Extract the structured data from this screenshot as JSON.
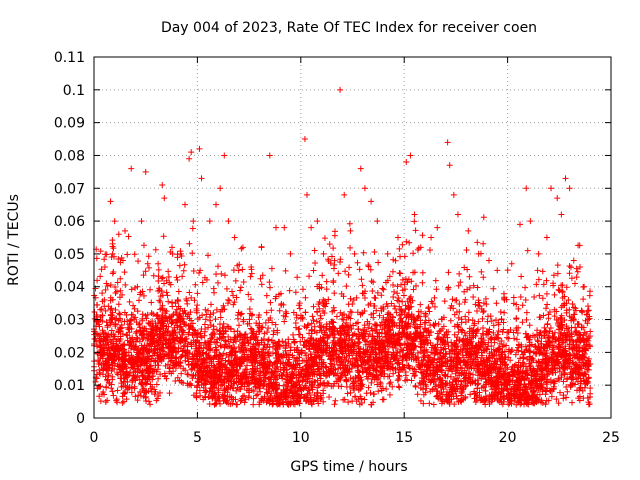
{
  "chart_data": {
    "type": "scatter",
    "title": "Day 004 of 2023, Rate Of TEC Index for receiver coen",
    "xlabel": "GPS time / hours",
    "ylabel": "ROTI / TECUs",
    "xlim": [
      0,
      25
    ],
    "ylim": [
      0,
      0.11
    ],
    "x_ticks": [
      "0",
      "5",
      "10",
      "15",
      "20",
      "25"
    ],
    "y_ticks": [
      "0",
      "0.01",
      "0.02",
      "0.03",
      "0.04",
      "0.05",
      "0.06",
      "0.07",
      "0.08",
      "0.09",
      "0.1",
      "0.11"
    ],
    "grid": true,
    "marker": "+",
    "color": "#ff0000",
    "points": [
      [
        0.1,
        0.028
      ],
      [
        0.3,
        0.033
      ],
      [
        0.5,
        0.036
      ],
      [
        0.6,
        0.041
      ],
      [
        0.8,
        0.066
      ],
      [
        0.9,
        0.05
      ],
      [
        1.0,
        0.06
      ],
      [
        1.2,
        0.056
      ],
      [
        1.4,
        0.048
      ],
      [
        1.5,
        0.057
      ],
      [
        1.8,
        0.076
      ],
      [
        2.1,
        0.04
      ],
      [
        2.3,
        0.06
      ],
      [
        2.5,
        0.075
      ],
      [
        2.6,
        0.047
      ],
      [
        3.1,
        0.047
      ],
      [
        3.3,
        0.071
      ],
      [
        3.4,
        0.067
      ],
      [
        3.8,
        0.05
      ],
      [
        4.2,
        0.05
      ],
      [
        4.4,
        0.065
      ],
      [
        4.6,
        0.079
      ],
      [
        4.7,
        0.081
      ],
      [
        4.8,
        0.06
      ],
      [
        5.1,
        0.082
      ],
      [
        5.2,
        0.073
      ],
      [
        5.6,
        0.06
      ],
      [
        5.9,
        0.065
      ],
      [
        6.1,
        0.07
      ],
      [
        6.3,
        0.08
      ],
      [
        6.5,
        0.06
      ],
      [
        6.8,
        0.055
      ],
      [
        7.2,
        0.052
      ],
      [
        7.6,
        0.046
      ],
      [
        8.1,
        0.052
      ],
      [
        8.5,
        0.08
      ],
      [
        8.8,
        0.058
      ],
      [
        9.2,
        0.058
      ],
      [
        9.5,
        0.05
      ],
      [
        10.2,
        0.085
      ],
      [
        10.3,
        0.068
      ],
      [
        10.5,
        0.058
      ],
      [
        10.8,
        0.06
      ],
      [
        11.1,
        0.05
      ],
      [
        11.4,
        0.053
      ],
      [
        11.9,
        0.1
      ],
      [
        12.1,
        0.068
      ],
      [
        12.4,
        0.057
      ],
      [
        12.6,
        0.05
      ],
      [
        12.9,
        0.076
      ],
      [
        13.1,
        0.07
      ],
      [
        13.4,
        0.066
      ],
      [
        13.7,
        0.06
      ],
      [
        14.2,
        0.05
      ],
      [
        14.7,
        0.055
      ],
      [
        15.1,
        0.078
      ],
      [
        15.3,
        0.08
      ],
      [
        15.5,
        0.062
      ],
      [
        15.8,
        0.052
      ],
      [
        16.3,
        0.055
      ],
      [
        16.6,
        0.058
      ],
      [
        17.1,
        0.084
      ],
      [
        17.2,
        0.077
      ],
      [
        17.4,
        0.068
      ],
      [
        17.6,
        0.062
      ],
      [
        18.1,
        0.057
      ],
      [
        18.6,
        0.05
      ],
      [
        19.1,
        0.048
      ],
      [
        19.5,
        0.045
      ],
      [
        20.2,
        0.047
      ],
      [
        20.6,
        0.059
      ],
      [
        20.9,
        0.07
      ],
      [
        21.1,
        0.06
      ],
      [
        21.5,
        0.05
      ],
      [
        21.9,
        0.055
      ],
      [
        22.1,
        0.07
      ],
      [
        22.4,
        0.067
      ],
      [
        22.6,
        0.062
      ],
      [
        22.8,
        0.073
      ],
      [
        23.0,
        0.07
      ],
      [
        23.2,
        0.048
      ],
      [
        23.5,
        0.046
      ],
      [
        23.7,
        0.04
      ],
      [
        23.9,
        0.03
      ]
    ]
  }
}
